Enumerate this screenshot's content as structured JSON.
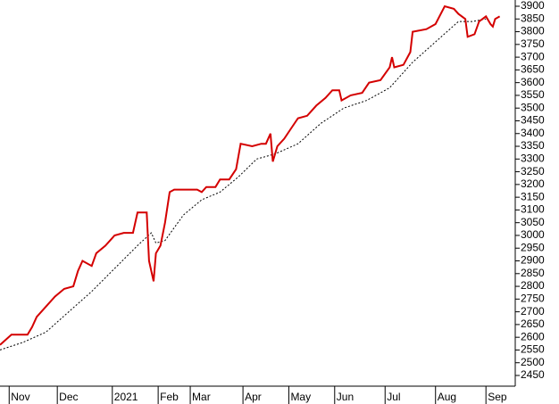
{
  "chart_data": {
    "type": "line",
    "xlim": [
      0,
      224
    ],
    "xticks": [
      {
        "value": 4,
        "label": "Nov"
      },
      {
        "value": 25,
        "label": "Dec"
      },
      {
        "value": 49,
        "label": "2021"
      },
      {
        "value": 69,
        "label": "Feb"
      },
      {
        "value": 83,
        "label": "Mar"
      },
      {
        "value": 106,
        "label": "Apr"
      },
      {
        "value": 126,
        "label": "May"
      },
      {
        "value": 146,
        "label": "Jun"
      },
      {
        "value": 168,
        "label": "Jul"
      },
      {
        "value": 190,
        "label": "Aug"
      },
      {
        "value": 212,
        "label": "Sep"
      }
    ],
    "ylim": [
      2450,
      3900
    ],
    "yticks": [
      2450,
      2500,
      2550,
      2600,
      2650,
      2700,
      2750,
      2800,
      2850,
      2900,
      2950,
      3000,
      3050,
      3100,
      3150,
      3200,
      3250,
      3300,
      3350,
      3400,
      3450,
      3500,
      3550,
      3600,
      3650,
      3700,
      3750,
      3800,
      3850,
      3900
    ],
    "series": [
      {
        "color": "#d40000",
        "style": "solid",
        "x": [
          0,
          5,
          12,
          14,
          16,
          20,
          24,
          28,
          32,
          34,
          36,
          40,
          42,
          46,
          50,
          54,
          58,
          60,
          64,
          65,
          67,
          68,
          70,
          72,
          74,
          76,
          86,
          88,
          90,
          94,
          96,
          100,
          103,
          105,
          110,
          114,
          116,
          118,
          119,
          121,
          124,
          127,
          130,
          134,
          138,
          142,
          145,
          148,
          149,
          153,
          158,
          161,
          166,
          170,
          171,
          172,
          176,
          179,
          180,
          186,
          190,
          194,
          198,
          200,
          203,
          204,
          207,
          209,
          212,
          214,
          215,
          216,
          218
        ],
        "values": [
          2570,
          2610,
          2610,
          2640,
          2680,
          2720,
          2760,
          2790,
          2800,
          2860,
          2900,
          2880,
          2930,
          2960,
          3000,
          3010,
          3010,
          3090,
          3090,
          2900,
          2820,
          2930,
          2960,
          3050,
          3170,
          3180,
          3180,
          3170,
          3190,
          3190,
          3220,
          3220,
          3260,
          3360,
          3350,
          3360,
          3360,
          3400,
          3290,
          3350,
          3380,
          3420,
          3460,
          3470,
          3510,
          3540,
          3570,
          3570,
          3530,
          3550,
          3560,
          3600,
          3610,
          3660,
          3700,
          3660,
          3670,
          3720,
          3800,
          3810,
          3830,
          3900,
          3890,
          3870,
          3850,
          3780,
          3790,
          3840,
          3860,
          3830,
          3820,
          3850,
          3860
        ]
      },
      {
        "color": "#000000",
        "style": "dotted",
        "x": [
          0,
          10,
          20,
          30,
          40,
          50,
          60,
          66,
          68,
          72,
          80,
          88,
          96,
          104,
          112,
          120,
          130,
          140,
          150,
          160,
          170,
          180,
          190,
          200,
          206,
          212
        ],
        "values": [
          2550,
          2580,
          2620,
          2700,
          2780,
          2870,
          2960,
          3010,
          2970,
          2980,
          3080,
          3140,
          3170,
          3230,
          3300,
          3320,
          3360,
          3440,
          3500,
          3530,
          3580,
          3680,
          3760,
          3840,
          3840,
          3850
        ]
      }
    ]
  }
}
